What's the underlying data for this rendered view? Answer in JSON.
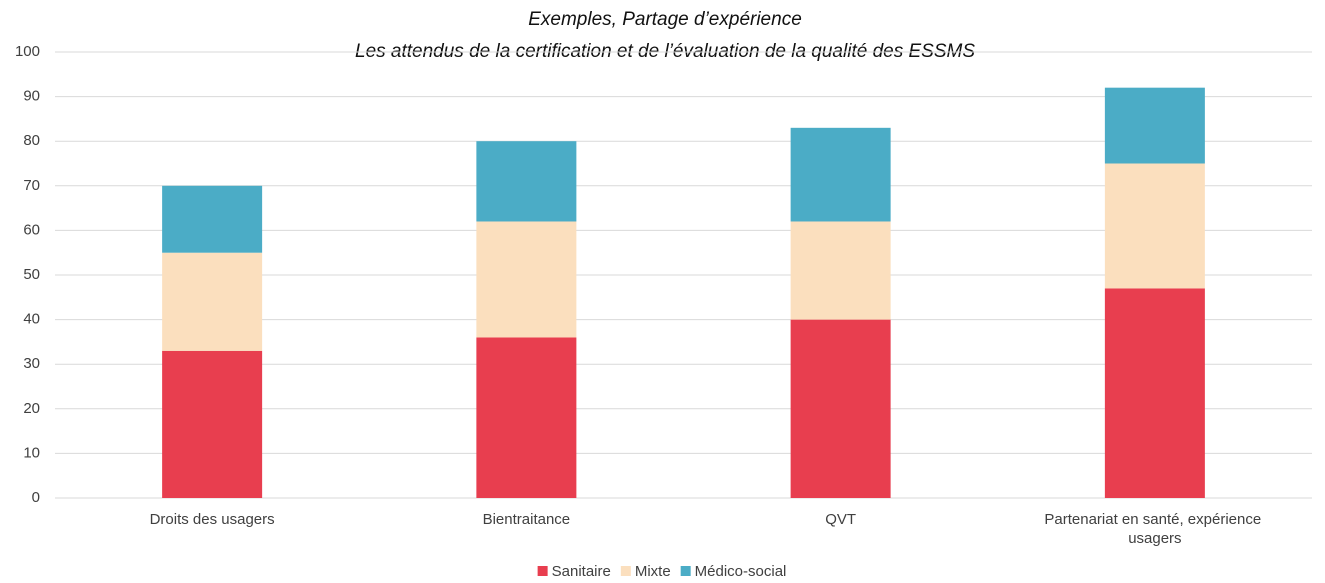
{
  "chart_data": {
    "type": "stacked_bar",
    "title": "Exemples, Partage d’expérience",
    "subtitle": "Les attendus de la certification et de l’évaluation de la qualité des ESSMS",
    "categories": [
      "Droits des usagers",
      "Bientraitance",
      "QVT",
      "Partenariat en santé, expérience usagers"
    ],
    "series": [
      {
        "name": "Sanitaire",
        "color": "#e83e4f",
        "values": [
          33,
          36,
          40,
          47
        ]
      },
      {
        "name": "Mixte",
        "color": "#fbdfbe",
        "values": [
          22,
          26,
          22,
          28
        ]
      },
      {
        "name": "Médico-social",
        "color": "#4bacc6",
        "values": [
          15,
          18,
          21,
          17
        ]
      }
    ],
    "ylim": [
      0,
      100
    ],
    "yticks": [
      0,
      10,
      20,
      30,
      40,
      50,
      60,
      70,
      80,
      90,
      100
    ],
    "grid": true,
    "legend": "bottom"
  }
}
